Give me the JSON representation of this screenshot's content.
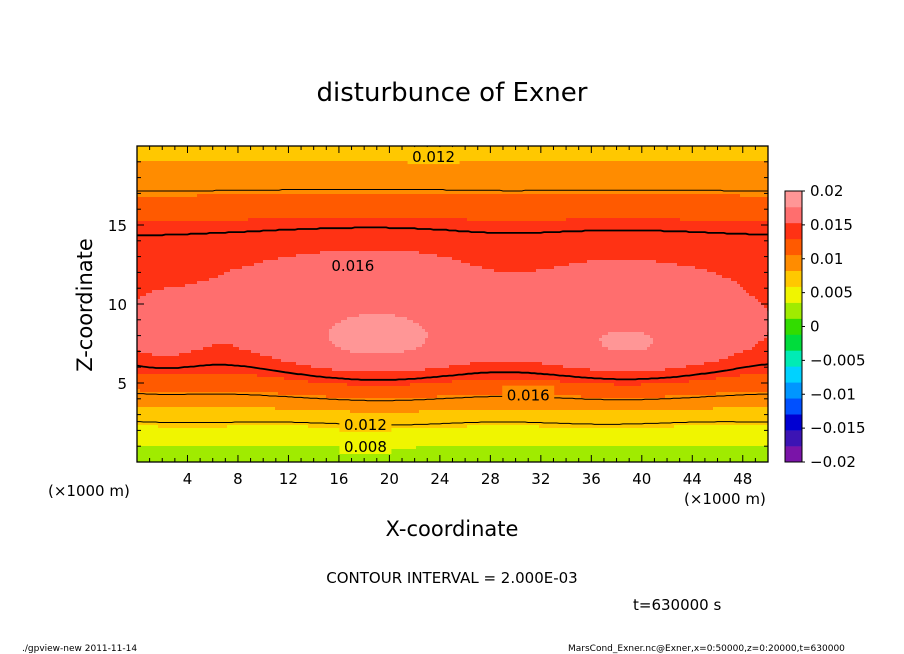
{
  "chart_data": {
    "type": "heatmap",
    "title": "disturbunce of Exner",
    "xlabel": "X-coordinate",
    "ylabel": "Z-coordinate",
    "x_unit": "(×1000 m)",
    "z_unit": "(×1000 m)",
    "xlim": [
      0,
      50
    ],
    "ylim": [
      0,
      20
    ],
    "x_ticks": [
      4,
      8,
      12,
      16,
      20,
      24,
      28,
      32,
      36,
      40,
      44,
      48
    ],
    "y_ticks": [
      5,
      10,
      15
    ],
    "colorbar": {
      "min": -0.02,
      "max": 0.02,
      "step": 0.0025,
      "labels": [
        "0.02",
        "0.015",
        "0.01",
        "0.005",
        "0",
        "−0.005",
        "−0.01",
        "−0.015",
        "−0.02"
      ],
      "colors": [
        "#7a14a8",
        "#3c14b4",
        "#0000d2",
        "#0050ff",
        "#0096ff",
        "#00d2ff",
        "#00ebb4",
        "#00dc3c",
        "#32dc00",
        "#a0eb00",
        "#f0f500",
        "#ffc800",
        "#ff8c00",
        "#ff5a00",
        "#ff3214",
        "#ff6e6e",
        "#ff9696"
      ]
    },
    "contour_labels": [
      {
        "text": "0.012",
        "x": 23.5,
        "z": 19.3
      },
      {
        "text": "0.016",
        "x": 17.1,
        "z": 12.4
      },
      {
        "text": "0.016",
        "x": 31.0,
        "z": 4.2
      },
      {
        "text": "0.012",
        "x": 18.1,
        "z": 2.35
      },
      {
        "text": "0.008",
        "x": 18.1,
        "z": 0.95
      }
    ],
    "contour_interval_text": "CONTOUR INTERVAL = 2.000E-03",
    "time_text": "t=630000 s"
  },
  "footer": {
    "left": "./gpview-new 2011-11-14",
    "right": "MarsCond_Exner.nc@Exner,x=0:50000,z=0:20000,t=630000"
  }
}
